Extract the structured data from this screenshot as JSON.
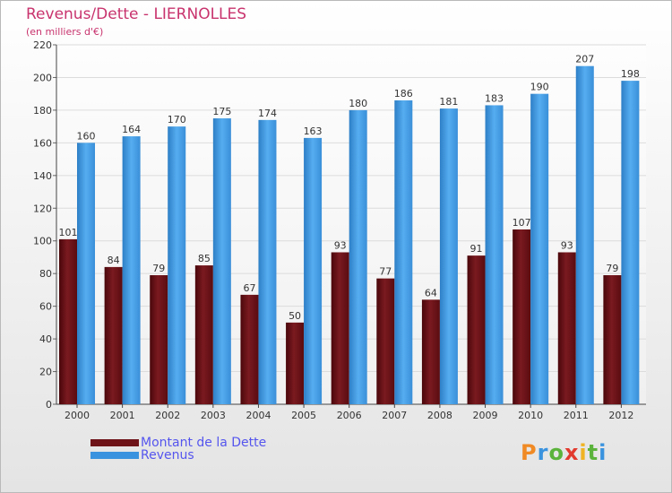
{
  "title": "Revenus/Dette - LIERNOLLES",
  "subtitle": "(en milliers d'€)",
  "colors": {
    "dette": "#6e1318",
    "revenus": "#3a93de",
    "title": "#c8336d",
    "legend_text": "#5555ee"
  },
  "logo": {
    "letters": [
      "P",
      "r",
      "o",
      "x",
      "i",
      "t",
      "i"
    ]
  },
  "chart_data": {
    "type": "bar",
    "categories": [
      "2000",
      "2001",
      "2002",
      "2003",
      "2004",
      "2005",
      "2006",
      "2007",
      "2008",
      "2009",
      "2010",
      "2011",
      "2012"
    ],
    "series": [
      {
        "name": "Montant de la Dette",
        "values": [
          101,
          84,
          79,
          85,
          67,
          50,
          93,
          77,
          64,
          91,
          107,
          93,
          79
        ]
      },
      {
        "name": "Revenus",
        "values": [
          160,
          164,
          170,
          175,
          174,
          163,
          180,
          186,
          181,
          183,
          190,
          207,
          198
        ]
      }
    ],
    "ylim": [
      0,
      220
    ],
    "yticks": [
      0,
      20,
      40,
      60,
      80,
      100,
      120,
      140,
      160,
      180,
      200,
      220
    ],
    "grid": true,
    "legend": "bottom-left"
  }
}
